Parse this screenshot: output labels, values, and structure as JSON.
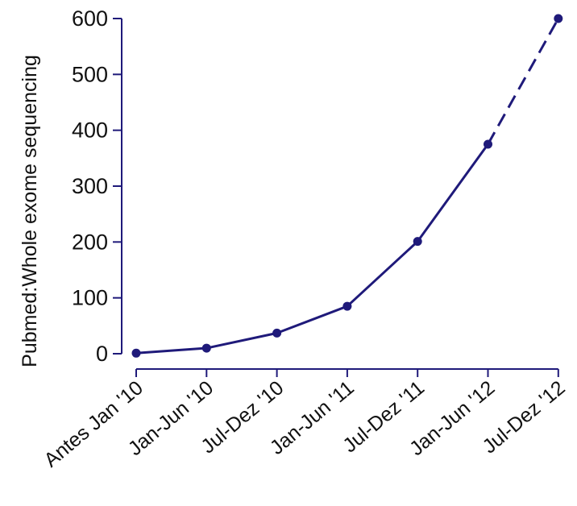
{
  "chart_data": {
    "type": "line",
    "title": "",
    "xlabel": "",
    "ylabel": "Pubmed:Whole exome sequencing",
    "categories": [
      "Antes Jan '10",
      "Jan-Jun '10",
      "Jul-Dez '10",
      "Jan-Jun '11",
      "Jul-Dez '11",
      "Jan-Jun '12",
      "Jul-Dez '12"
    ],
    "series": [
      {
        "values": [
          1,
          10,
          37,
          85,
          201,
          375,
          600
        ],
        "color": "#1f1a7a",
        "dashed_last_segment": true
      }
    ],
    "ylim": [
      0,
      600
    ],
    "yticks": [
      0,
      100,
      200,
      300,
      400,
      500,
      600
    ],
    "ytick_labels": [
      "0",
      "100",
      "200",
      "300",
      "400",
      "500",
      "600"
    ],
    "grid": false,
    "legend": "none",
    "axis_color": "#1f1a7a"
  }
}
